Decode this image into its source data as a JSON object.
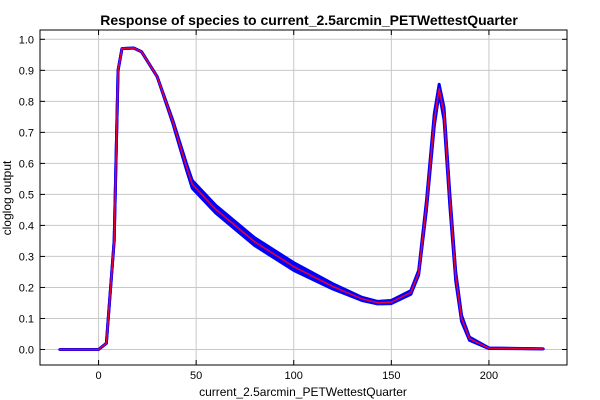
{
  "chart_data": {
    "type": "line",
    "title": "Response of species to current_2.5arcmin_PETWettestQuarter",
    "xlabel": "current_2.5arcmin_PETWettestQuarter",
    "ylabel": "cloglog output",
    "xlim": [
      -30,
      240
    ],
    "ylim": [
      -0.05,
      1.03
    ],
    "grid": true,
    "x_ticks": [
      0,
      50,
      100,
      150,
      200
    ],
    "y_ticks": [
      0.0,
      0.1,
      0.2,
      0.3,
      0.4,
      0.5,
      0.6,
      0.7,
      0.8,
      0.9,
      1.0
    ],
    "x_tick_labels": [
      "0",
      "50",
      "100",
      "150",
      "200"
    ],
    "y_tick_labels": [
      "0.0",
      "0.1",
      "0.2",
      "0.3",
      "0.4",
      "0.5",
      "0.6",
      "0.7",
      "0.8",
      "0.9",
      "1.0"
    ],
    "series": [
      {
        "role": "spread",
        "color": "#0000ff",
        "lower": [
          [
            -20,
            0.0
          ],
          [
            0,
            0.0
          ],
          [
            4,
            0.02
          ],
          [
            8,
            0.35
          ],
          [
            10,
            0.9
          ],
          [
            12,
            0.97
          ],
          [
            18,
            0.972
          ],
          [
            22,
            0.96
          ],
          [
            30,
            0.88
          ],
          [
            38,
            0.73
          ],
          [
            45,
            0.58
          ],
          [
            48,
            0.52
          ],
          [
            60,
            0.44
          ],
          [
            80,
            0.335
          ],
          [
            100,
            0.255
          ],
          [
            120,
            0.195
          ],
          [
            135,
            0.158
          ],
          [
            143,
            0.147
          ],
          [
            150,
            0.148
          ],
          [
            160,
            0.178
          ],
          [
            164,
            0.24
          ],
          [
            168,
            0.45
          ],
          [
            172,
            0.72
          ],
          [
            174.5,
            0.828
          ],
          [
            177,
            0.74
          ],
          [
            180,
            0.46
          ],
          [
            183,
            0.22
          ],
          [
            186,
            0.09
          ],
          [
            190,
            0.03
          ],
          [
            200,
            0.003
          ],
          [
            228,
            0.002
          ]
        ],
        "upper": [
          [
            -20,
            0.0
          ],
          [
            0,
            0.0
          ],
          [
            4,
            0.02
          ],
          [
            8,
            0.35
          ],
          [
            10,
            0.9
          ],
          [
            12,
            0.97
          ],
          [
            18,
            0.972
          ],
          [
            22,
            0.96
          ],
          [
            30,
            0.88
          ],
          [
            38,
            0.74
          ],
          [
            45,
            0.6
          ],
          [
            48,
            0.545
          ],
          [
            60,
            0.465
          ],
          [
            80,
            0.36
          ],
          [
            100,
            0.28
          ],
          [
            120,
            0.212
          ],
          [
            135,
            0.168
          ],
          [
            143,
            0.155
          ],
          [
            150,
            0.158
          ],
          [
            160,
            0.19
          ],
          [
            164,
            0.255
          ],
          [
            168,
            0.48
          ],
          [
            172,
            0.76
          ],
          [
            174.5,
            0.855
          ],
          [
            177,
            0.78
          ],
          [
            180,
            0.5
          ],
          [
            183,
            0.25
          ],
          [
            186,
            0.11
          ],
          [
            190,
            0.04
          ],
          [
            200,
            0.005
          ],
          [
            228,
            0.002
          ]
        ]
      },
      {
        "role": "mean",
        "color": "#e0003c",
        "points": [
          [
            -20,
            0.0
          ],
          [
            0,
            0.0
          ],
          [
            4,
            0.02
          ],
          [
            8,
            0.35
          ],
          [
            10,
            0.9
          ],
          [
            12,
            0.97
          ],
          [
            18,
            0.972
          ],
          [
            22,
            0.96
          ],
          [
            30,
            0.88
          ],
          [
            38,
            0.735
          ],
          [
            45,
            0.59
          ],
          [
            48,
            0.533
          ],
          [
            60,
            0.452
          ],
          [
            80,
            0.347
          ],
          [
            100,
            0.267
          ],
          [
            120,
            0.203
          ],
          [
            135,
            0.163
          ],
          [
            143,
            0.151
          ],
          [
            150,
            0.153
          ],
          [
            160,
            0.184
          ],
          [
            164,
            0.247
          ],
          [
            168,
            0.465
          ],
          [
            172,
            0.74
          ],
          [
            174.5,
            0.84
          ],
          [
            177,
            0.76
          ],
          [
            180,
            0.48
          ],
          [
            183,
            0.235
          ],
          [
            186,
            0.1
          ],
          [
            190,
            0.035
          ],
          [
            200,
            0.004
          ],
          [
            228,
            0.002
          ]
        ]
      }
    ]
  }
}
